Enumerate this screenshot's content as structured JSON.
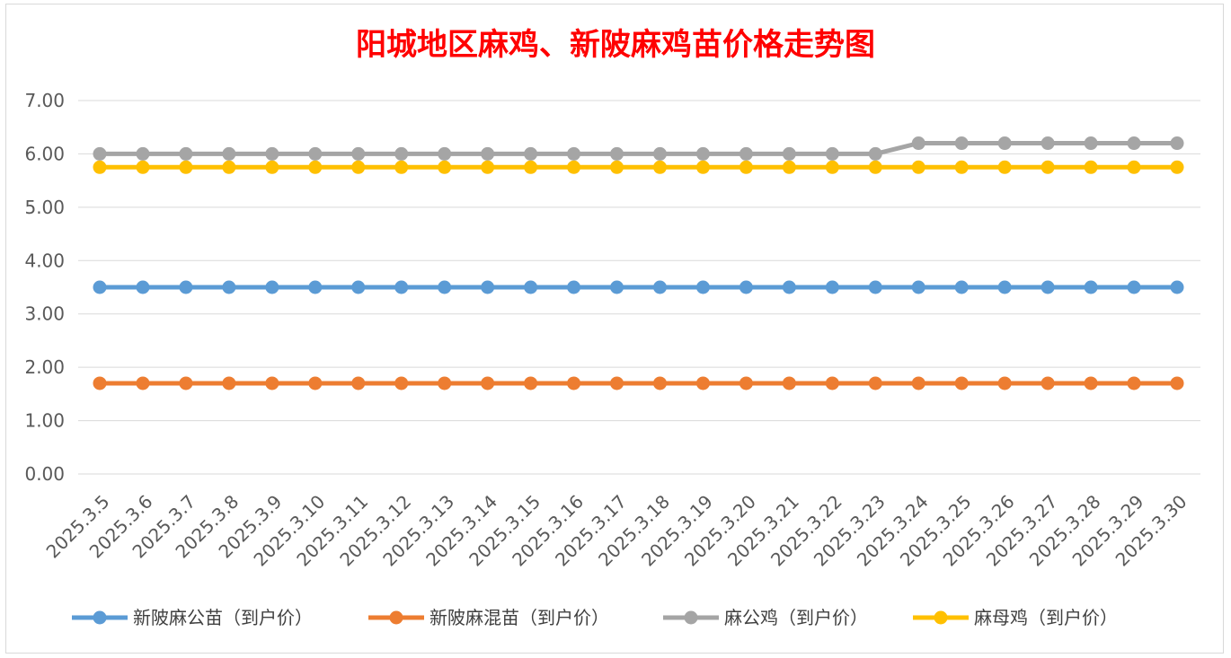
{
  "chart_data": {
    "type": "line",
    "title": "阳城地区麻鸡、新陂麻鸡苗价格走势图",
    "xlabel": "",
    "ylabel": "",
    "ylim": [
      0,
      7
    ],
    "yticks": [
      "0.00",
      "1.00",
      "2.00",
      "3.00",
      "4.00",
      "5.00",
      "6.00",
      "7.00"
    ],
    "grid": "horizontal",
    "legend": "bottom",
    "categories": [
      "2025.3.5",
      "2025.3.6",
      "2025.3.7",
      "2025.3.8",
      "2025.3.9",
      "2025.3.10",
      "2025.3.11",
      "2025.3.12",
      "2025.3.13",
      "2025.3.14",
      "2025.3.15",
      "2025.3.16",
      "2025.3.17",
      "2025.3.18",
      "2025.3.19",
      "2025.3.20",
      "2025.3.21",
      "2025.3.22",
      "2025.3.23",
      "2025.3.24",
      "2025.3.25",
      "2025.3.26",
      "2025.3.27",
      "2025.3.28",
      "2025.3.29",
      "2025.3.30"
    ],
    "series": [
      {
        "name": "新陂麻公苗（到户价）",
        "color": "#5b9bd5",
        "values": [
          3.5,
          3.5,
          3.5,
          3.5,
          3.5,
          3.5,
          3.5,
          3.5,
          3.5,
          3.5,
          3.5,
          3.5,
          3.5,
          3.5,
          3.5,
          3.5,
          3.5,
          3.5,
          3.5,
          3.5,
          3.5,
          3.5,
          3.5,
          3.5,
          3.5,
          3.5
        ]
      },
      {
        "name": "新陂麻混苗（到户价）",
        "color": "#ed7d31",
        "values": [
          1.7,
          1.7,
          1.7,
          1.7,
          1.7,
          1.7,
          1.7,
          1.7,
          1.7,
          1.7,
          1.7,
          1.7,
          1.7,
          1.7,
          1.7,
          1.7,
          1.7,
          1.7,
          1.7,
          1.7,
          1.7,
          1.7,
          1.7,
          1.7,
          1.7,
          1.7
        ]
      },
      {
        "name": "麻公鸡（到户价）",
        "color": "#a5a5a5",
        "values": [
          6.0,
          6.0,
          6.0,
          6.0,
          6.0,
          6.0,
          6.0,
          6.0,
          6.0,
          6.0,
          6.0,
          6.0,
          6.0,
          6.0,
          6.0,
          6.0,
          6.0,
          6.0,
          6.0,
          6.2,
          6.2,
          6.2,
          6.2,
          6.2,
          6.2,
          6.2
        ]
      },
      {
        "name": "麻母鸡（到户价）",
        "color": "#ffc000",
        "values": [
          5.75,
          5.75,
          5.75,
          5.75,
          5.75,
          5.75,
          5.75,
          5.75,
          5.75,
          5.75,
          5.75,
          5.75,
          5.75,
          5.75,
          5.75,
          5.75,
          5.75,
          5.75,
          5.75,
          5.75,
          5.75,
          5.75,
          5.75,
          5.75,
          5.75,
          5.75
        ]
      }
    ]
  }
}
